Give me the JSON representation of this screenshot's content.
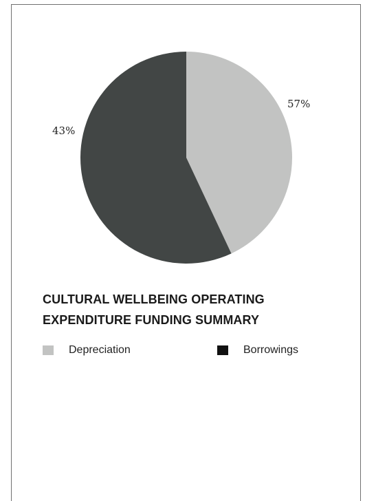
{
  "chart_data": {
    "type": "pie",
    "title": "CULTURAL WELLBEING OPERATING EXPENDITURE FUNDING SUMMARY",
    "slices": [
      {
        "name": "Depreciation",
        "value": 43,
        "color": "#c2c3c2"
      },
      {
        "name": "Borrowings",
        "value": 57,
        "color": "#424645"
      }
    ],
    "data_labels": [
      "57%",
      "43%"
    ],
    "legend_position": "bottom",
    "legend": [
      {
        "label": "Depreciation",
        "color": "#c2c3c2"
      },
      {
        "label": "Borrowings",
        "color": "#111111"
      }
    ]
  }
}
